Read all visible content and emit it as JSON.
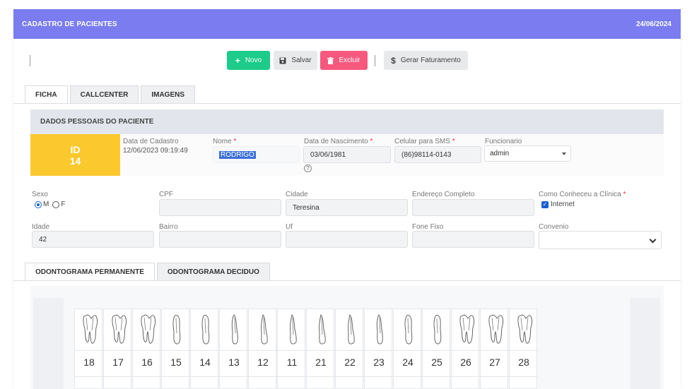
{
  "header": {
    "title": "CADASTRO DE PACIENTES",
    "date": "24/06/2024"
  },
  "toolbar": {
    "novo_label": "Novo",
    "salvar_label": "Salvar",
    "excluir_label": "Excluir",
    "faturamento_label": "Gerar Faturamento"
  },
  "tabs": [
    "FICHA",
    "CALLCENTER",
    "IMAGENS"
  ],
  "section": {
    "title": "DADOS PESSOAIS DO PACIENTE"
  },
  "patient": {
    "id_label": "ID",
    "id_value": "14",
    "cadastro_label": "Data de Cadastro",
    "cadastro_value": "12/06/2023 09:19:49",
    "nome_label": "Nome",
    "nome_value": "RODRIGO",
    "nascimento_label": "Data de Nascimento",
    "nascimento_value": "03/06/1981",
    "celular_label": "Celular para SMS",
    "celular_value": "(86)98114-0143",
    "funcionario_label": "Funcionario",
    "funcionario_value": "admin",
    "required_mark": "*",
    "help_mark": "?"
  },
  "form": {
    "sexo_label": "Sexo",
    "sexo_m": "M",
    "sexo_f": "F",
    "cpf_label": "CPF",
    "cpf_value": "",
    "cidade_label": "Cidade",
    "cidade_value": "Teresina",
    "endereco_label": "Endereço Completo",
    "endereco_value": "",
    "conheceu_label": "Como Conheceu a Clínica",
    "conheceu_option": "Internet",
    "idade_label": "Idade",
    "idade_value": "42",
    "bairro_label": "Bairro",
    "bairro_value": "",
    "uf_label": "Uf",
    "uf_value": "",
    "fone_label": "Fone Fixo",
    "fone_value": "",
    "convenio_label": "Convenio",
    "convenio_value": ""
  },
  "odonto_tabs": [
    "ODONTOGRAMA PERMANENTE",
    "ODONTOGRAMA DECIDUO"
  ],
  "teeth": [
    {
      "num": "18",
      "type": "molar"
    },
    {
      "num": "17",
      "type": "molar"
    },
    {
      "num": "16",
      "type": "molar"
    },
    {
      "num": "15",
      "type": "premolar"
    },
    {
      "num": "14",
      "type": "premolar"
    },
    {
      "num": "13",
      "type": "canine"
    },
    {
      "num": "12",
      "type": "incisor"
    },
    {
      "num": "11",
      "type": "incisor"
    },
    {
      "num": "21",
      "type": "incisor"
    },
    {
      "num": "22",
      "type": "incisor"
    },
    {
      "num": "23",
      "type": "canine"
    },
    {
      "num": "24",
      "type": "premolar"
    },
    {
      "num": "25",
      "type": "premolar"
    },
    {
      "num": "26",
      "type": "molar"
    },
    {
      "num": "27",
      "type": "molar"
    },
    {
      "num": "28",
      "type": "molar"
    }
  ],
  "colors": {
    "header": "#7a7cf0",
    "novo": "#1dcb8a",
    "excluir": "#f6587e",
    "id_box": "#fbc82e"
  },
  "icons": {
    "novo": "plus-icon",
    "salvar": "save-icon",
    "excluir": "trash-icon",
    "faturamento": "dollar-icon"
  }
}
